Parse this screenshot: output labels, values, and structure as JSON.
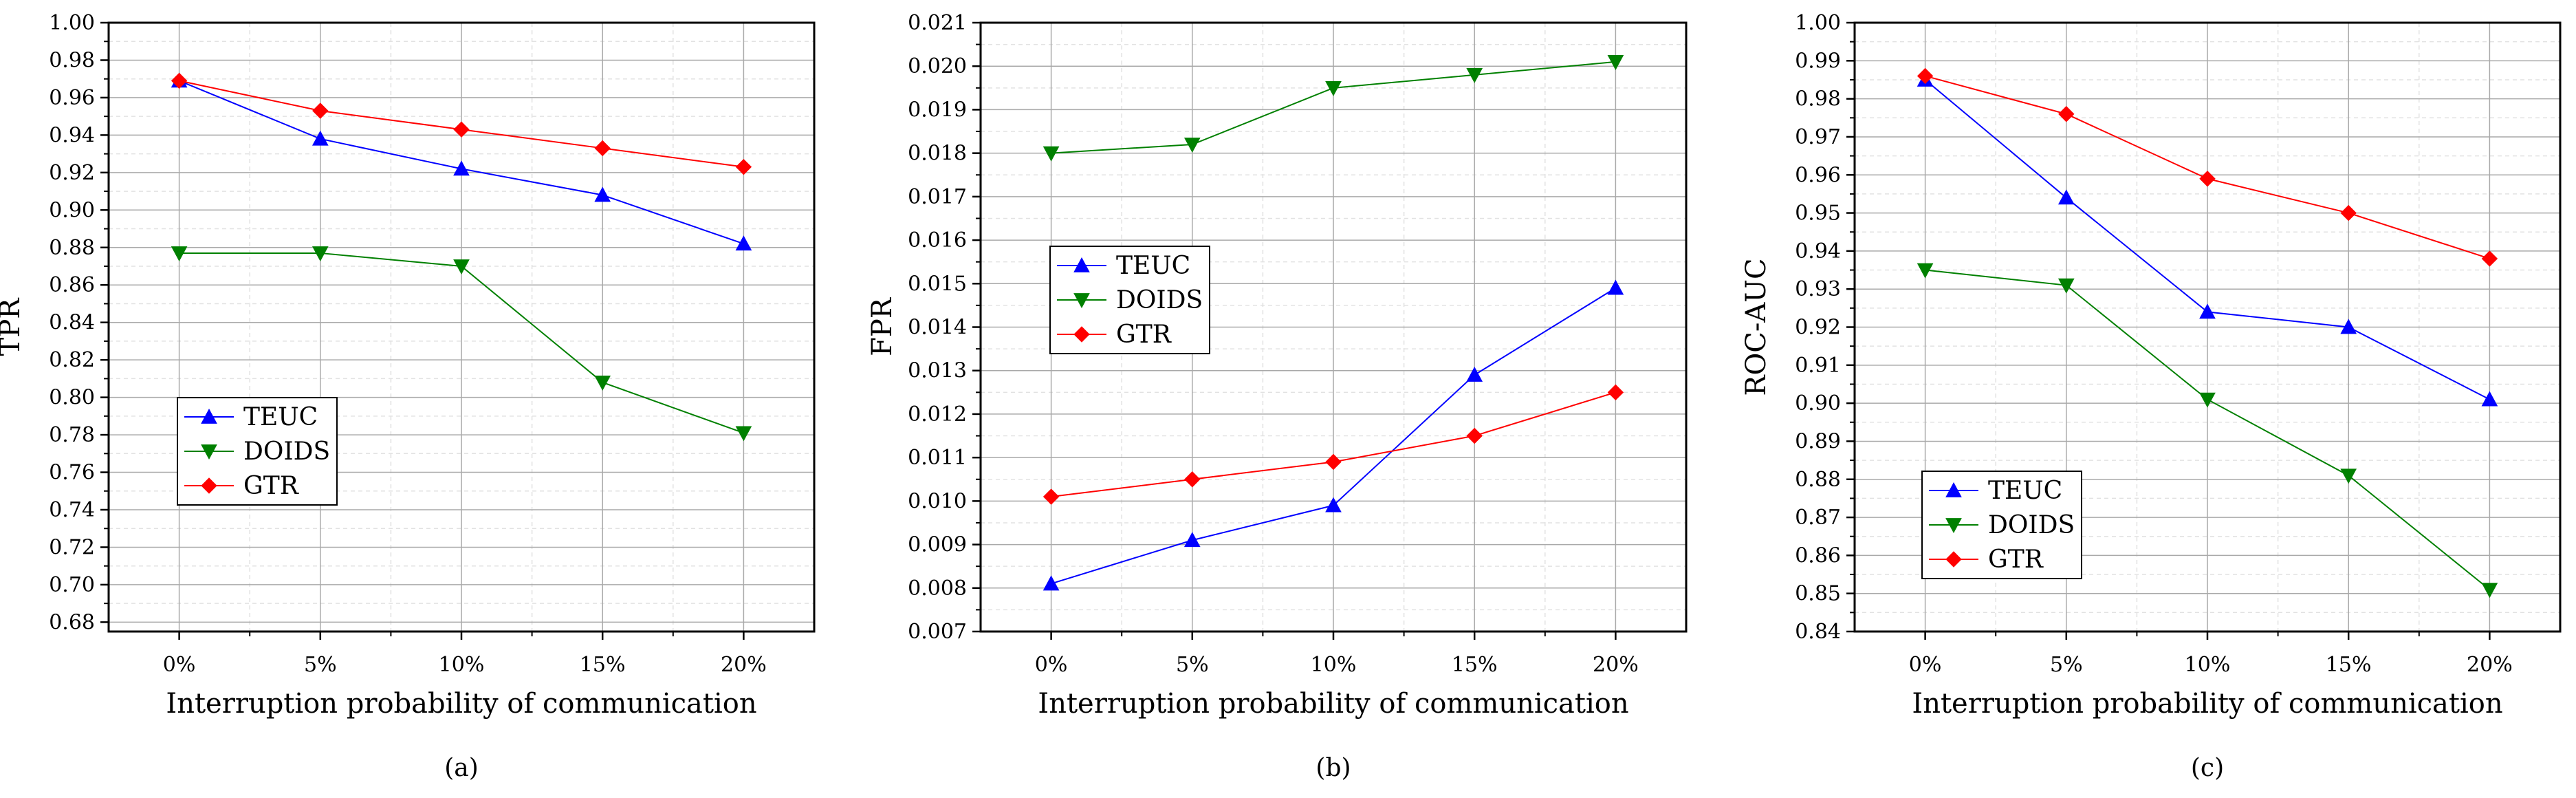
{
  "chart_data": [
    {
      "type": "line",
      "caption": "(a)",
      "xlabel": "Interruption probability of communication",
      "ylabel": "TPR",
      "categories": [
        "0%",
        "5%",
        "10%",
        "15%",
        "20%"
      ],
      "ylim": [
        0.675,
        1.0
      ],
      "yticks": [
        0.68,
        0.7,
        0.72,
        0.74,
        0.76,
        0.78,
        0.8,
        0.82,
        0.84,
        0.86,
        0.88,
        0.9,
        0.92,
        0.94,
        0.96,
        0.98,
        1.0
      ],
      "ytick_labels": [
        "0.68",
        "0.70",
        "0.72",
        "0.74",
        "0.76",
        "0.78",
        "0.80",
        "0.82",
        "0.84",
        "0.86",
        "0.88",
        "0.90",
        "0.92",
        "0.94",
        "0.96",
        "0.98",
        "1.00"
      ],
      "legend_position": "lower-left",
      "series": [
        {
          "name": "TEUC",
          "color": "#0000ff",
          "marker": "triangle-up",
          "values": [
            0.969,
            0.938,
            0.922,
            0.908,
            0.882
          ]
        },
        {
          "name": "DOIDS",
          "color": "#008000",
          "marker": "triangle-down",
          "values": [
            0.877,
            0.877,
            0.87,
            0.808,
            0.781
          ]
        },
        {
          "name": "GTR",
          "color": "#ff0000",
          "marker": "diamond",
          "values": [
            0.969,
            0.953,
            0.943,
            0.933,
            0.923
          ]
        }
      ]
    },
    {
      "type": "line",
      "caption": "(b)",
      "xlabel": "Interruption probability of communication",
      "ylabel": "FPR",
      "categories": [
        "0%",
        "5%",
        "10%",
        "15%",
        "20%"
      ],
      "ylim": [
        0.007,
        0.021
      ],
      "yticks": [
        0.007,
        0.008,
        0.009,
        0.01,
        0.011,
        0.012,
        0.013,
        0.014,
        0.015,
        0.016,
        0.017,
        0.018,
        0.019,
        0.02,
        0.021
      ],
      "ytick_labels": [
        "0.007",
        "0.008",
        "0.009",
        "0.010",
        "0.011",
        "0.012",
        "0.013",
        "0.014",
        "0.015",
        "0.016",
        "0.017",
        "0.018",
        "0.019",
        "0.020",
        "0.021"
      ],
      "legend_position": "center-left",
      "series": [
        {
          "name": "TEUC",
          "color": "#0000ff",
          "marker": "triangle-up",
          "values": [
            0.0081,
            0.0091,
            0.0099,
            0.0129,
            0.0149
          ]
        },
        {
          "name": "DOIDS",
          "color": "#008000",
          "marker": "triangle-down",
          "values": [
            0.018,
            0.0182,
            0.0195,
            0.0198,
            0.0201
          ]
        },
        {
          "name": "GTR",
          "color": "#ff0000",
          "marker": "diamond",
          "values": [
            0.0101,
            0.0105,
            0.0109,
            0.0115,
            0.0125
          ]
        }
      ]
    },
    {
      "type": "line",
      "caption": "(c)",
      "xlabel": "Interruption probability of communication",
      "ylabel": "ROC-AUC",
      "categories": [
        "0%",
        "5%",
        "10%",
        "15%",
        "20%"
      ],
      "ylim": [
        0.84,
        1.0
      ],
      "yticks": [
        0.84,
        0.85,
        0.86,
        0.87,
        0.88,
        0.89,
        0.9,
        0.91,
        0.92,
        0.93,
        0.94,
        0.95,
        0.96,
        0.97,
        0.98,
        0.99,
        1.0
      ],
      "ytick_labels": [
        "0.84",
        "0.85",
        "0.86",
        "0.87",
        "0.88",
        "0.89",
        "0.90",
        "0.91",
        "0.92",
        "0.93",
        "0.94",
        "0.95",
        "0.96",
        "0.97",
        "0.98",
        "0.99",
        "1.00"
      ],
      "legend_position": "lower-left",
      "series": [
        {
          "name": "TEUC",
          "color": "#0000ff",
          "marker": "triangle-up",
          "values": [
            0.985,
            0.954,
            0.924,
            0.92,
            0.901
          ]
        },
        {
          "name": "DOIDS",
          "color": "#008000",
          "marker": "triangle-down",
          "values": [
            0.935,
            0.931,
            0.901,
            0.881,
            0.851
          ]
        },
        {
          "name": "GTR",
          "color": "#ff0000",
          "marker": "diamond",
          "values": [
            0.986,
            0.976,
            0.959,
            0.95,
            0.938
          ]
        }
      ]
    }
  ]
}
